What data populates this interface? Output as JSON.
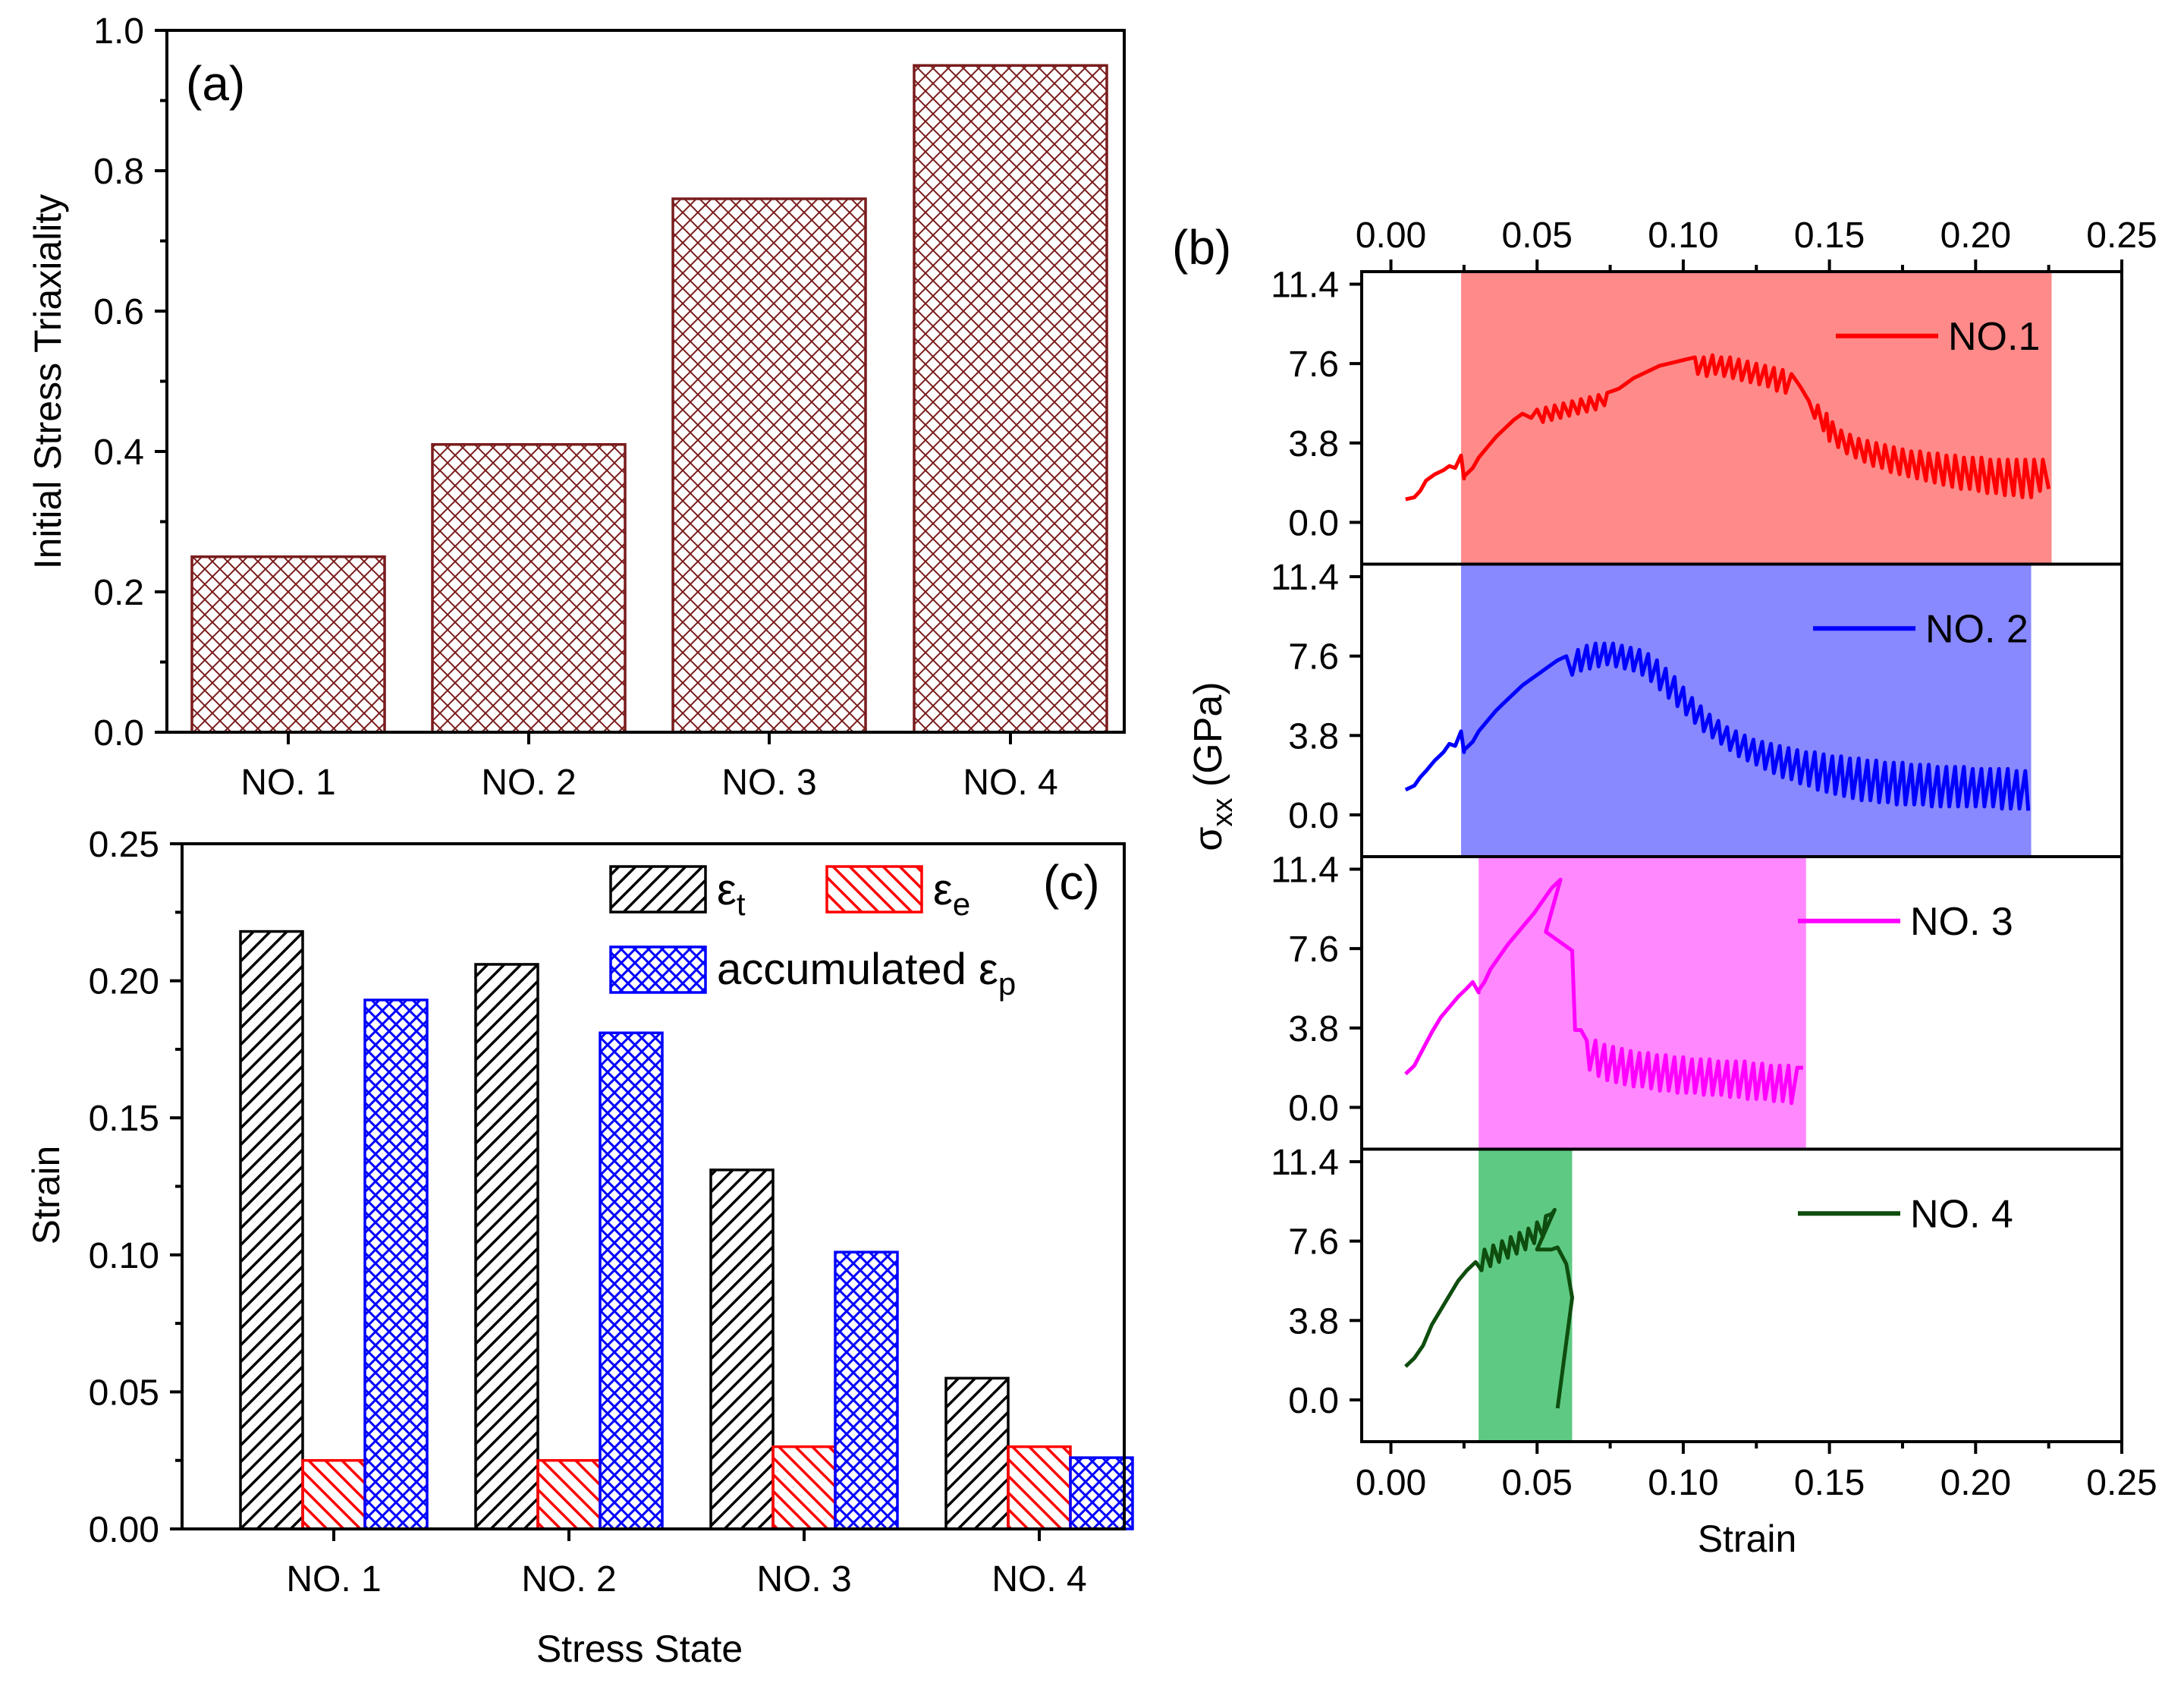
{
  "chart_data": [
    {
      "panel": "(a)",
      "type": "bar",
      "ylabel": "Initial Stress Triaxiality",
      "xlabel": "",
      "ylim": [
        0,
        1.0
      ],
      "yticks": [
        "0.0",
        "0.2",
        "0.4",
        "0.6",
        "0.8",
        "1.0"
      ],
      "categories": [
        "NO. 1",
        "NO. 2",
        "NO. 3",
        "NO. 4"
      ],
      "values": [
        0.25,
        0.41,
        0.76,
        0.95
      ],
      "bar_color": "#7a1c1c",
      "pattern": "crosshatch"
    },
    {
      "panel": "(c)",
      "type": "bar",
      "xlabel": "Stress State",
      "ylabel": "Strain",
      "ylim": [
        0,
        0.25
      ],
      "yticks": [
        "0.00",
        "0.05",
        "0.10",
        "0.15",
        "0.20",
        "0.25"
      ],
      "categories": [
        "NO. 1",
        "NO. 2",
        "NO. 3",
        "NO. 4"
      ],
      "series": [
        {
          "name": "ε",
          "sub": "t",
          "color": "#000000",
          "pattern": "diag",
          "values": [
            0.218,
            0.206,
            0.131,
            0.055
          ]
        },
        {
          "name": "ε",
          "sub": "e",
          "color": "#ff0000",
          "pattern": "diag-rev",
          "values": [
            0.025,
            0.025,
            0.03,
            0.03
          ]
        },
        {
          "name": "accumulated ε",
          "sub": "p",
          "color": "#0000ff",
          "pattern": "crosshatch",
          "values": [
            0.193,
            0.181,
            0.101,
            0.026
          ]
        }
      ]
    },
    {
      "panel": "(b)",
      "type": "line",
      "xlabel": "Strain",
      "ylabel": "σ",
      "ylabel_sub": "xx",
      "ylabel_unit": "(GPa)",
      "xlim": [
        -0.01,
        0.25
      ],
      "xticks": [
        "0.00",
        "0.05",
        "0.10",
        "0.15",
        "0.20",
        "0.25"
      ],
      "ylim": [
        -2.0,
        12.0
      ],
      "yticks": [
        "0.0",
        "3.8",
        "7.6",
        "11.4"
      ],
      "subplots": [
        {
          "name": "NO.1",
          "color": "#ff0000",
          "shade": "#ff8a8a",
          "shade_range": [
            0.024,
            0.226
          ],
          "x": [
            0.005,
            0.008,
            0.01,
            0.012,
            0.015,
            0.018,
            0.02,
            0.022,
            0.024,
            0.025,
            0.025,
            0.028,
            0.03,
            0.033,
            0.036,
            0.039,
            0.042,
            0.045,
            0.048,
            0.05,
            0.052,
            0.053,
            0.055,
            0.056,
            0.058,
            0.059,
            0.061,
            0.062,
            0.064,
            0.065,
            0.067,
            0.068,
            0.07,
            0.071,
            0.073,
            0.074,
            0.076,
            0.078,
            0.08,
            0.083,
            0.086,
            0.089,
            0.092,
            0.095,
            0.098,
            0.101,
            0.104,
            0.105,
            0.107,
            0.108,
            0.11,
            0.111,
            0.113,
            0.114,
            0.116,
            0.117,
            0.119,
            0.12,
            0.122,
            0.123,
            0.125,
            0.126,
            0.128,
            0.129,
            0.131,
            0.132,
            0.134,
            0.135,
            0.137,
            0.138,
            0.14,
            0.143,
            0.145,
            0.146,
            0.148,
            0.149,
            0.15,
            0.151,
            0.153,
            0.154,
            0.156,
            0.157,
            0.159,
            0.16,
            0.162,
            0.163,
            0.165,
            0.166,
            0.168,
            0.169,
            0.171,
            0.172,
            0.174,
            0.175,
            0.177,
            0.178,
            0.18,
            0.181,
            0.183,
            0.184,
            0.186,
            0.187,
            0.189,
            0.19,
            0.192,
            0.193,
            0.195,
            0.196,
            0.198,
            0.199,
            0.201,
            0.202,
            0.204,
            0.205,
            0.207,
            0.208,
            0.21,
            0.211,
            0.213,
            0.214,
            0.216,
            0.217,
            0.219,
            0.22,
            0.222,
            0.223,
            0.225
          ],
          "y": [
            1.1,
            1.2,
            1.5,
            2.0,
            2.3,
            2.5,
            2.7,
            2.6,
            3.2,
            2.1,
            2.2,
            2.6,
            3.1,
            3.6,
            4.1,
            4.5,
            4.9,
            5.2,
            5.0,
            5.4,
            4.8,
            5.5,
            4.9,
            5.6,
            5.0,
            5.7,
            5.1,
            5.8,
            5.2,
            5.9,
            5.3,
            6.0,
            5.4,
            6.1,
            5.6,
            6.2,
            6.3,
            6.4,
            6.6,
            6.9,
            7.1,
            7.3,
            7.5,
            7.6,
            7.7,
            7.8,
            7.9,
            7.1,
            7.9,
            7.0,
            8.0,
            7.1,
            7.9,
            7.0,
            7.9,
            6.9,
            7.8,
            6.8,
            7.7,
            6.7,
            7.6,
            6.6,
            7.5,
            6.5,
            7.4,
            6.3,
            7.3,
            6.2,
            7.1,
            6.9,
            6.5,
            5.8,
            5.0,
            5.6,
            4.4,
            5.2,
            3.9,
            4.8,
            3.6,
            4.4,
            3.3,
            4.2,
            3.1,
            4.0,
            2.9,
            3.9,
            2.7,
            3.8,
            2.6,
            3.7,
            2.4,
            3.6,
            2.3,
            3.5,
            2.2,
            3.4,
            2.1,
            3.4,
            2.0,
            3.3,
            1.9,
            3.3,
            1.8,
            3.2,
            1.7,
            3.2,
            1.6,
            3.1,
            1.6,
            3.1,
            1.5,
            3.1,
            1.4,
            3.0,
            1.4,
            3.0,
            1.3,
            3.0,
            1.3,
            3.0,
            1.2,
            3.0,
            1.2,
            3.0,
            1.5,
            3.0,
            1.6
          ]
        },
        {
          "name": "NO. 2",
          "color": "#0000ff",
          "shade": "#8888ff",
          "shade_range": [
            0.024,
            0.219
          ],
          "x": [
            0.005,
            0.008,
            0.01,
            0.012,
            0.015,
            0.018,
            0.02,
            0.022,
            0.024,
            0.025,
            0.025,
            0.028,
            0.03,
            0.033,
            0.036,
            0.039,
            0.042,
            0.045,
            0.048,
            0.051,
            0.054,
            0.057,
            0.06,
            0.062,
            0.064,
            0.065,
            0.067,
            0.068,
            0.07,
            0.071,
            0.073,
            0.074,
            0.076,
            0.077,
            0.079,
            0.08,
            0.082,
            0.083,
            0.085,
            0.086,
            0.088,
            0.089,
            0.091,
            0.092,
            0.094,
            0.095,
            0.097,
            0.098,
            0.1,
            0.101,
            0.103,
            0.104,
            0.106,
            0.107,
            0.109,
            0.11,
            0.112,
            0.113,
            0.115,
            0.116,
            0.118,
            0.119,
            0.121,
            0.122,
            0.124,
            0.125,
            0.127,
            0.128,
            0.13,
            0.131,
            0.133,
            0.134,
            0.136,
            0.137,
            0.139,
            0.14,
            0.142,
            0.143,
            0.145,
            0.146,
            0.148,
            0.149,
            0.151,
            0.152,
            0.154,
            0.155,
            0.157,
            0.158,
            0.16,
            0.161,
            0.163,
            0.164,
            0.166,
            0.167,
            0.169,
            0.17,
            0.172,
            0.173,
            0.175,
            0.176,
            0.178,
            0.179,
            0.181,
            0.182,
            0.184,
            0.185,
            0.187,
            0.188,
            0.19,
            0.191,
            0.193,
            0.194,
            0.196,
            0.197,
            0.199,
            0.2,
            0.202,
            0.203,
            0.205,
            0.206,
            0.208,
            0.209,
            0.211,
            0.212,
            0.214,
            0.215,
            0.217,
            0.218
          ],
          "y": [
            1.2,
            1.4,
            1.8,
            2.1,
            2.6,
            3.0,
            3.4,
            3.3,
            4.0,
            3.0,
            3.1,
            3.5,
            4.0,
            4.5,
            5.0,
            5.4,
            5.8,
            6.2,
            6.5,
            6.8,
            7.1,
            7.4,
            7.6,
            6.7,
            7.9,
            6.9,
            8.1,
            7.0,
            8.2,
            7.1,
            8.2,
            7.2,
            8.2,
            7.1,
            8.1,
            7.0,
            8.0,
            6.9,
            7.9,
            6.7,
            7.7,
            6.4,
            7.4,
            6.0,
            7.0,
            5.6,
            6.6,
            5.2,
            6.1,
            4.8,
            5.6,
            4.4,
            5.2,
            4.0,
            4.8,
            3.7,
            4.5,
            3.4,
            4.2,
            3.1,
            4.0,
            2.8,
            3.8,
            2.6,
            3.6,
            2.4,
            3.5,
            2.2,
            3.4,
            2.0,
            3.3,
            1.8,
            3.2,
            1.7,
            3.1,
            1.5,
            3.0,
            1.4,
            3.0,
            1.2,
            2.9,
            1.1,
            2.8,
            1.0,
            2.8,
            0.9,
            2.7,
            0.8,
            2.7,
            0.7,
            2.6,
            0.7,
            2.6,
            0.6,
            2.5,
            0.6,
            2.5,
            0.5,
            2.5,
            0.5,
            2.4,
            0.5,
            2.4,
            0.5,
            2.4,
            0.4,
            2.3,
            0.4,
            2.3,
            0.4,
            2.3,
            0.4,
            2.3,
            0.4,
            2.2,
            0.4,
            2.2,
            0.4,
            2.2,
            0.4,
            2.2,
            0.3,
            2.2,
            0.3,
            2.1,
            0.3,
            2.1,
            0.2
          ]
        },
        {
          "name": "NO. 3",
          "color": "#ff00ff",
          "shade": "#ff88ff",
          "shade_range": [
            0.03,
            0.142
          ],
          "x": [
            0.005,
            0.008,
            0.011,
            0.014,
            0.017,
            0.02,
            0.023,
            0.026,
            0.028,
            0.03,
            0.03,
            0.032,
            0.034,
            0.037,
            0.04,
            0.043,
            0.046,
            0.049,
            0.052,
            0.055,
            0.058,
            0.053,
            0.062,
            0.063,
            0.065,
            0.067,
            0.068,
            0.07,
            0.071,
            0.073,
            0.074,
            0.076,
            0.077,
            0.079,
            0.08,
            0.082,
            0.083,
            0.085,
            0.086,
            0.088,
            0.089,
            0.091,
            0.092,
            0.094,
            0.095,
            0.097,
            0.098,
            0.1,
            0.101,
            0.103,
            0.104,
            0.106,
            0.107,
            0.109,
            0.11,
            0.112,
            0.113,
            0.115,
            0.116,
            0.118,
            0.119,
            0.121,
            0.122,
            0.124,
            0.125,
            0.127,
            0.128,
            0.13,
            0.131,
            0.133,
            0.134,
            0.136,
            0.137,
            0.139,
            0.141
          ],
          "y": [
            1.6,
            2.0,
            2.8,
            3.6,
            4.3,
            4.8,
            5.3,
            5.7,
            6.0,
            5.5,
            5.6,
            6.0,
            6.6,
            7.2,
            7.8,
            8.3,
            8.8,
            9.3,
            9.9,
            10.5,
            10.9,
            8.4,
            7.5,
            3.7,
            3.7,
            3.2,
            1.8,
            3.2,
            1.5,
            3.0,
            1.3,
            2.9,
            1.2,
            2.8,
            1.1,
            2.7,
            1.0,
            2.6,
            1.0,
            2.6,
            0.9,
            2.5,
            0.8,
            2.5,
            0.8,
            2.4,
            0.7,
            2.4,
            0.7,
            2.3,
            0.7,
            2.3,
            0.6,
            2.3,
            0.6,
            2.2,
            0.6,
            2.2,
            0.5,
            2.2,
            0.5,
            2.2,
            0.4,
            2.1,
            0.4,
            2.1,
            0.4,
            2.0,
            0.3,
            2.0,
            0.3,
            2.0,
            0.2,
            1.9,
            1.9
          ]
        },
        {
          "name": "NO. 4",
          "color": "#0e4d0e",
          "shade": "#5ec982",
          "shade_range": [
            0.03,
            0.062
          ],
          "x": [
            0.005,
            0.008,
            0.011,
            0.014,
            0.017,
            0.02,
            0.023,
            0.026,
            0.029,
            0.031,
            0.032,
            0.034,
            0.035,
            0.037,
            0.038,
            0.04,
            0.041,
            0.043,
            0.044,
            0.046,
            0.047,
            0.049,
            0.05,
            0.052,
            0.053,
            0.055,
            0.056,
            0.05,
            0.055,
            0.057,
            0.06,
            0.062,
            0.057
          ],
          "y": [
            1.6,
            2.0,
            2.6,
            3.6,
            4.3,
            5.0,
            5.7,
            6.2,
            6.6,
            6.2,
            7.2,
            6.4,
            7.4,
            6.6,
            7.6,
            6.8,
            7.8,
            7.0,
            8.0,
            7.2,
            8.2,
            7.5,
            8.5,
            7.8,
            8.8,
            8.9,
            9.1,
            7.2,
            7.2,
            7.3,
            6.5,
            4.9,
            -0.4
          ]
        }
      ]
    }
  ]
}
